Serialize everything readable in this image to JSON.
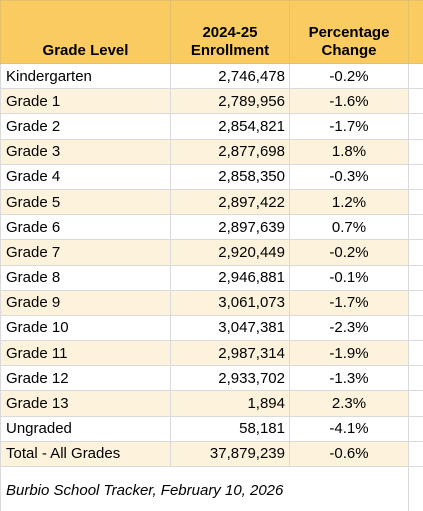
{
  "header": {
    "grade_level": "Grade Level",
    "enrollment_line1": "2024-25",
    "enrollment_line2": "Enrollment",
    "change_line1": "Percentage",
    "change_line2": "Change"
  },
  "rows": [
    {
      "level": "Kindergarten",
      "enrollment": "2,746,478",
      "change": "-0.2%"
    },
    {
      "level": "Grade 1",
      "enrollment": "2,789,956",
      "change": "-1.6%"
    },
    {
      "level": "Grade 2",
      "enrollment": "2,854,821",
      "change": "-1.7%"
    },
    {
      "level": "Grade 3",
      "enrollment": "2,877,698",
      "change": "1.8%"
    },
    {
      "level": "Grade 4",
      "enrollment": "2,858,350",
      "change": "-0.3%"
    },
    {
      "level": "Grade 5",
      "enrollment": "2,897,422",
      "change": "1.2%"
    },
    {
      "level": "Grade 6",
      "enrollment": "2,897,639",
      "change": "0.7%"
    },
    {
      "level": "Grade 7",
      "enrollment": "2,920,449",
      "change": "-0.2%"
    },
    {
      "level": "Grade 8",
      "enrollment": "2,946,881",
      "change": "-0.1%"
    },
    {
      "level": "Grade 9",
      "enrollment": "3,061,073",
      "change": "-1.7%"
    },
    {
      "level": "Grade 10",
      "enrollment": "3,047,381",
      "change": "-2.3%"
    },
    {
      "level": "Grade 11",
      "enrollment": "2,987,314",
      "change": "-1.9%"
    },
    {
      "level": "Grade 12",
      "enrollment": "2,933,702",
      "change": "-1.3%"
    },
    {
      "level": "Grade 13",
      "enrollment": "1,894",
      "change": "2.3%"
    },
    {
      "level": "Ungraded",
      "enrollment": "58,181",
      "change": "-4.1%"
    },
    {
      "level": "Total - All Grades",
      "enrollment": "37,879,239",
      "change": "-0.6%"
    }
  ],
  "source_note": "Burbio School Tracker, February 10, 2026",
  "colors": {
    "header_bg": "#f9cb61",
    "band_bg": "#fdf3dd",
    "gridline": "#dadada"
  }
}
